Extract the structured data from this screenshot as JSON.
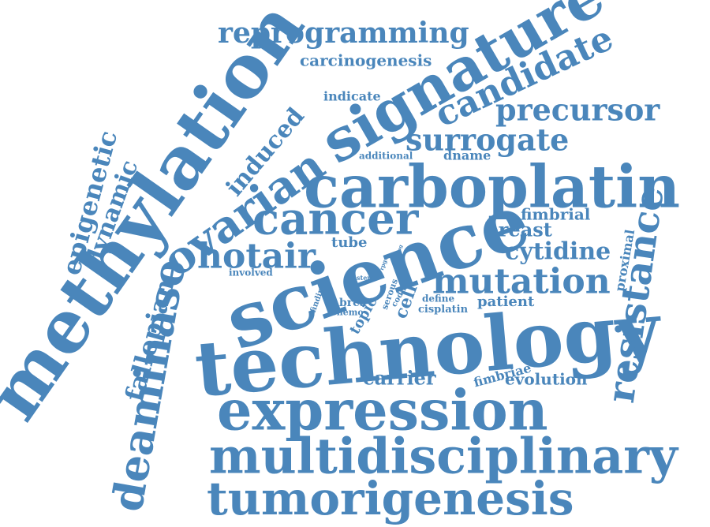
{
  "colors": {
    "word": "#4a86bb",
    "background": "#ffffff"
  },
  "words": {
    "methylation": "methylation",
    "technology": "technology",
    "science": "science",
    "carboplatin": "carboplatin",
    "expression": "expression",
    "multidisciplinary": "multidisciplinary",
    "tumorigenesis": "tumorigenesis",
    "signature": "signature",
    "cancer": "cancer",
    "ovarian": "ovarian",
    "deaminase": "deaminase",
    "resistance": "resistance",
    "mutation": "mutation",
    "hotair": "hotair",
    "candidate": "candidate",
    "precursor": "precursor",
    "surrogate": "surrogate",
    "reprogramming": "reprogramming",
    "carcinogenesis": "carcinogenesis",
    "cytidine": "cytidine",
    "epigenetic": "epigenetic",
    "dynamic": "dynamic",
    "fallopian": "fallopian",
    "induced": "induced",
    "breast": "breast",
    "fimbrial": "fimbrial",
    "evolution": "evolution",
    "carrier": "carrier",
    "patient": "patient",
    "proximal": "proximal",
    "fimbriae": "fimbriae",
    "tube": "tube",
    "cell": "cell",
    "topic": "topic",
    "indicate": "indicate",
    "additional": "additional",
    "dname": "dname",
    "involved": "involved",
    "define": "define",
    "cisplatin": "cisplatin",
    "brca": "brca",
    "chemo": "chemo",
    "serous": "serous",
    "finding": "finding",
    "coding": "coding",
    "stem": "stem",
    "rpgs": "rpgs",
    "pong": "pong"
  }
}
